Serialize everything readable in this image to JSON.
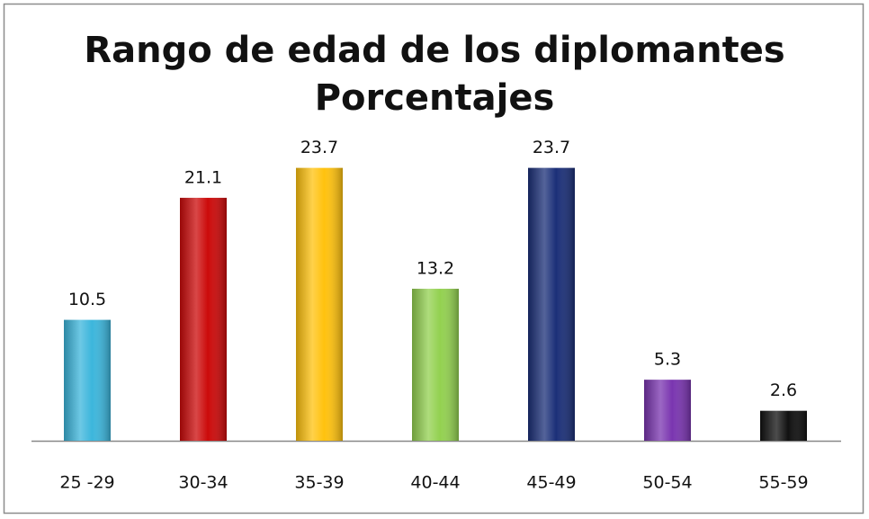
{
  "chart_data": {
    "type": "bar",
    "title": "Rango de edad de los diplomantes",
    "subtitle": "Porcentajes",
    "categories": [
      "25 -29",
      "30-34",
      "35-39",
      "40-44",
      "45-49",
      "50-54",
      "55-59"
    ],
    "values": [
      10.5,
      21.1,
      23.7,
      13.2,
      23.7,
      5.3,
      2.6
    ],
    "colors": [
      "#3cb6dc",
      "#cc0a0a",
      "#ffc20e",
      "#93d150",
      "#1b2f78",
      "#7a35b0",
      "#111111"
    ]
  }
}
